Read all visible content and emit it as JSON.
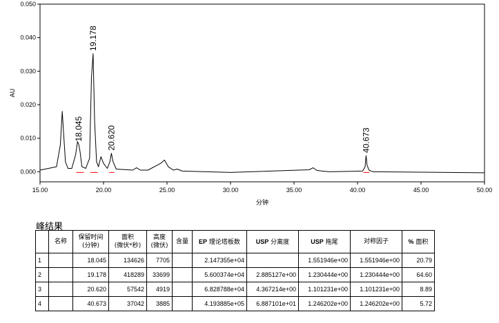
{
  "chart_data": {
    "type": "line",
    "xlabel": "分钟",
    "ylabel": "AU",
    "xlim": [
      15.0,
      50.0
    ],
    "ylim": [
      -0.003,
      0.05
    ],
    "x_ticks": [
      "15.00",
      "20.00",
      "25.00",
      "30.00",
      "35.00",
      "40.00",
      "45.00",
      "50.00"
    ],
    "y_ticks": [
      "0.000",
      "0.010",
      "0.020",
      "0.030",
      "0.040",
      "0.050"
    ],
    "y_tick_values": [
      0.0,
      0.01,
      0.02,
      0.03,
      0.04,
      0.05
    ],
    "grid": false,
    "line_color": "#000000",
    "baseline_color": "#ff0000",
    "series": [
      {
        "x": [
          15.0,
          16.3,
          16.6,
          16.75,
          16.85,
          17.0,
          17.2,
          17.5,
          17.8,
          17.95,
          18.045,
          18.15,
          18.3,
          18.6,
          18.9,
          19.05,
          19.178,
          19.3,
          19.45,
          19.6,
          19.8,
          20.0,
          20.3,
          20.5,
          20.62,
          20.75,
          21.0,
          22.3,
          22.6,
          22.9,
          23.5,
          24.5,
          24.8,
          25.1,
          25.5,
          25.8,
          26.2,
          30.0,
          36.2,
          36.5,
          36.8,
          37.2,
          37.8,
          40.4,
          40.6,
          40.673,
          40.75,
          40.9,
          41.2,
          50.0
        ],
        "y": [
          0.0005,
          0.0015,
          0.008,
          0.018,
          0.012,
          0.003,
          0.001,
          0.001,
          0.005,
          0.009,
          0.0082,
          0.006,
          0.0015,
          0.001,
          0.004,
          0.028,
          0.0352,
          0.015,
          0.003,
          0.0015,
          0.0045,
          0.0025,
          0.001,
          0.003,
          0.0055,
          0.003,
          0.0008,
          0.0005,
          0.0012,
          0.0005,
          0.0005,
          0.0025,
          0.0035,
          0.0015,
          0.0005,
          0.0008,
          0.0002,
          -0.0002,
          0.0006,
          0.0012,
          0.0004,
          0.0002,
          0.0,
          0.0002,
          0.0015,
          0.0048,
          0.002,
          0.0005,
          0.0,
          -0.0003
        ]
      }
    ],
    "peak_labels": [
      {
        "x": 18.045,
        "y": 0.0082,
        "text": "18.045"
      },
      {
        "x": 19.178,
        "y": 0.0352,
        "text": "19.178"
      },
      {
        "x": 20.62,
        "y": 0.0055,
        "text": "20.620"
      },
      {
        "x": 40.673,
        "y": 0.0048,
        "text": "40.673"
      }
    ],
    "baseline_segments": [
      [
        17.85,
        18.45
      ],
      [
        18.95,
        19.55
      ],
      [
        20.45,
        20.85
      ],
      [
        40.45,
        40.95
      ]
    ]
  },
  "results": {
    "title": "峰结果",
    "headers": {
      "index": "",
      "name": "名称",
      "rt": "保留时间\n(分钟)",
      "area": "面积\n(微伏*秒)",
      "height": "高度\n(微伏)",
      "amount": "含量",
      "ep_plates_prefix": "EP",
      "ep_plates": " 理论塔板数",
      "usp_res_prefix": "USP",
      "usp_res": " 分离度",
      "usp_tail_prefix": "USP",
      "usp_tail": " 拖尾",
      "symmetry": "对称因子",
      "pct_area_prefix": "%",
      "pct_area": " 面积"
    },
    "rows": [
      {
        "index": "1",
        "name": "",
        "rt": "18.045",
        "area": "134626",
        "height": "7705",
        "amount": "",
        "ep_plates": "2.147355e+04",
        "usp_res": "",
        "usp_tail": "1.551946e+00",
        "symmetry": "1.551946e+00",
        "pct_area": "20.79"
      },
      {
        "index": "2",
        "name": "",
        "rt": "19.178",
        "area": "418289",
        "height": "33699",
        "amount": "",
        "ep_plates": "5.600374e+04",
        "usp_res": "2.885127e+00",
        "usp_tail": "1.230444e+00",
        "symmetry": "1.230444e+00",
        "pct_area": "64.60"
      },
      {
        "index": "3",
        "name": "",
        "rt": "20.620",
        "area": "57542",
        "height": "4919",
        "amount": "",
        "ep_plates": "6.828788e+04",
        "usp_res": "4.367214e+00",
        "usp_tail": "1.101231e+00",
        "symmetry": "1.101231e+00",
        "pct_area": "8.89"
      },
      {
        "index": "4",
        "name": "",
        "rt": "40.673",
        "area": "37042",
        "height": "3885",
        "amount": "",
        "ep_plates": "4.193885e+05",
        "usp_res": "6.887101e+01",
        "usp_tail": "1.246202e+00",
        "symmetry": "1.246202e+00",
        "pct_area": "5.72"
      }
    ]
  }
}
